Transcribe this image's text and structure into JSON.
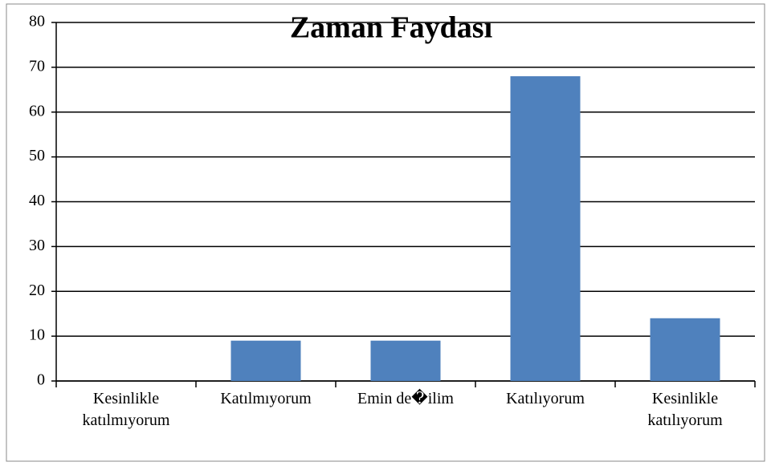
{
  "chart_data": {
    "type": "bar",
    "title": "Zaman Faydası",
    "categories": [
      "Kesinlikle katılmıyorum",
      "Katılmıyorum",
      "Emin de�ilim",
      "Katılıyorum",
      "Kesinlikle katılıyorum"
    ],
    "values": [
      0,
      9,
      9,
      68,
      14
    ],
    "color": "#4f81bd",
    "ylim": [
      0,
      80
    ],
    "yticks": [
      0,
      10,
      20,
      30,
      40,
      50,
      60,
      70,
      80
    ],
    "grid": true
  }
}
